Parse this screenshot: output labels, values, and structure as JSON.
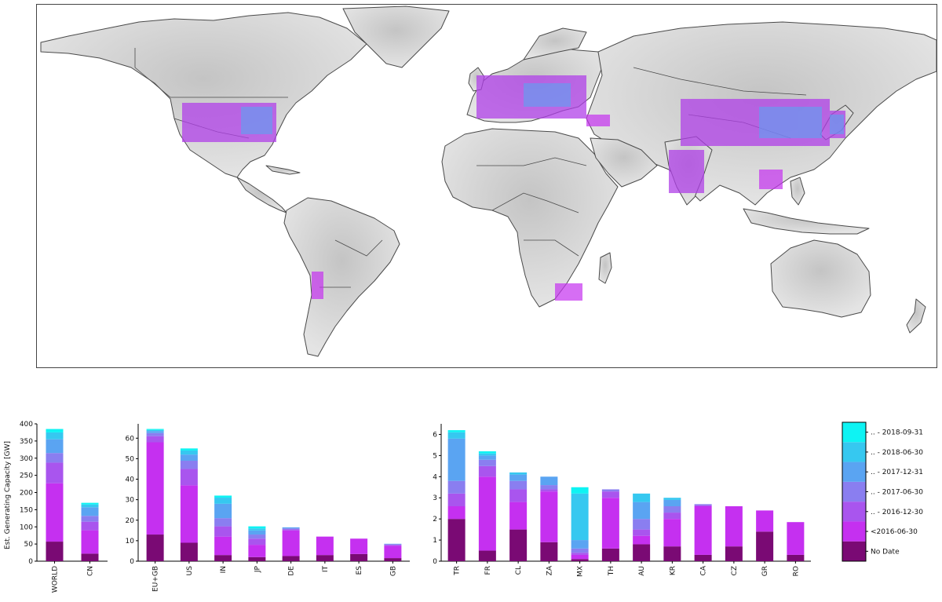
{
  "colors": {
    "no_date": "#7a0a74",
    "lt_2016_06_30": "#c530f0",
    "to_2016_12_30": "#a955ee",
    "to_2017_06_30": "#8a7ef0",
    "to_2017_12_31": "#5aa4f2",
    "to_2018_06_30": "#36c8f0",
    "to_2018_09_31": "#0ef3f3",
    "land": "#d9d9d9",
    "border": "#4a4a4a"
  },
  "chart_data": [
    {
      "type": "bar",
      "stacked": true,
      "ylabel": "Est. Generating Capacity [GW]",
      "ylim": [
        0,
        400
      ],
      "yticks": [
        0,
        50,
        100,
        150,
        200,
        250,
        300,
        350,
        400
      ],
      "categories": [
        "WORLD",
        "CN"
      ],
      "series": [
        {
          "name": "No Date",
          "values": [
            57,
            22
          ]
        },
        {
          "name": "<2016-06-30",
          "values": [
            170,
            68
          ]
        },
        {
          "name": ".. - 2016-12-30",
          "values": [
            60,
            25
          ]
        },
        {
          "name": ".. - 2017-06-30",
          "values": [
            28,
            17
          ]
        },
        {
          "name": ".. - 2017-12-31",
          "values": [
            40,
            25
          ]
        },
        {
          "name": ".. - 2018-06-30",
          "values": [
            20,
            8
          ]
        },
        {
          "name": ".. - 2018-09-31",
          "values": [
            10,
            5
          ]
        }
      ]
    },
    {
      "type": "bar",
      "stacked": true,
      "ylim": [
        0,
        67
      ],
      "yticks": [
        0,
        10,
        20,
        30,
        40,
        50,
        60
      ],
      "categories": [
        "EU+GB",
        "US",
        "IN",
        "JP",
        "DE",
        "IT",
        "ES",
        "GB"
      ],
      "series": [
        {
          "name": "No Date",
          "values": [
            13,
            9,
            3,
            2,
            2.5,
            3,
            3.5,
            1.5
          ]
        },
        {
          "name": "<2016-06-30",
          "values": [
            45,
            28,
            9,
            6,
            12.5,
            9,
            7.5,
            6
          ]
        },
        {
          "name": ".. - 2016-12-30",
          "values": [
            3,
            8,
            5,
            3,
            0.5,
            0,
            0,
            0.5
          ]
        },
        {
          "name": ".. - 2017-06-30",
          "values": [
            1.5,
            4,
            4,
            2,
            0.5,
            0,
            0,
            0.3
          ]
        },
        {
          "name": ".. - 2017-12-31",
          "values": [
            1,
            3,
            7,
            2,
            0.5,
            0,
            0,
            0.2
          ]
        },
        {
          "name": ".. - 2018-06-30",
          "values": [
            0.5,
            2,
            3,
            1,
            0,
            0,
            0,
            0
          ]
        },
        {
          "name": ".. - 2018-09-31",
          "values": [
            0.5,
            1,
            1,
            1,
            0,
            0,
            0,
            0
          ]
        }
      ]
    },
    {
      "type": "bar",
      "stacked": true,
      "ylim": [
        0,
        6.5
      ],
      "yticks": [
        0,
        1,
        2,
        3,
        4,
        5,
        6
      ],
      "categories": [
        "TR",
        "FR",
        "CL",
        "ZA",
        "MX",
        "TH",
        "AU",
        "KR",
        "CA",
        "CZ",
        "GR",
        "RO"
      ],
      "series": [
        {
          "name": "No Date",
          "values": [
            2.0,
            0.5,
            1.5,
            0.9,
            0.1,
            0.6,
            0.8,
            0.7,
            0.3,
            0.7,
            1.4,
            0.3
          ]
        },
        {
          "name": "<2016-06-30",
          "values": [
            0.6,
            3.5,
            1.3,
            2.4,
            0.2,
            2.4,
            0.4,
            1.3,
            2.3,
            1.9,
            1.0,
            1.55
          ]
        },
        {
          "name": ".. - 2016-12-30",
          "values": [
            0.6,
            0.5,
            0.6,
            0.1,
            0.1,
            0.3,
            0.3,
            0.3,
            0.05,
            0,
            0,
            0
          ]
        },
        {
          "name": ".. - 2017-06-30",
          "values": [
            0.6,
            0.3,
            0.4,
            0.2,
            0.2,
            0.1,
            0.5,
            0.3,
            0.05,
            0,
            0,
            0
          ]
        },
        {
          "name": ".. - 2017-12-31",
          "values": [
            2.0,
            0.2,
            0.3,
            0.4,
            0.4,
            0,
            0.8,
            0.3,
            0,
            0,
            0,
            0
          ]
        },
        {
          "name": ".. - 2018-06-30",
          "values": [
            0.3,
            0.1,
            0.1,
            0,
            2.2,
            0,
            0.4,
            0.1,
            0,
            0,
            0,
            0
          ]
        },
        {
          "name": ".. - 2018-09-31",
          "values": [
            0.1,
            0.1,
            0,
            0,
            0.3,
            0,
            0,
            0,
            0,
            0,
            0,
            0
          ]
        }
      ]
    }
  ],
  "colorbar": {
    "labels": [
      "No Date",
      "<2016-06-30",
      ".. - 2016-12-30",
      ".. - 2017-06-30",
      ".. - 2017-12-31",
      ".. - 2018-06-30",
      ".. - 2018-09-31"
    ]
  }
}
